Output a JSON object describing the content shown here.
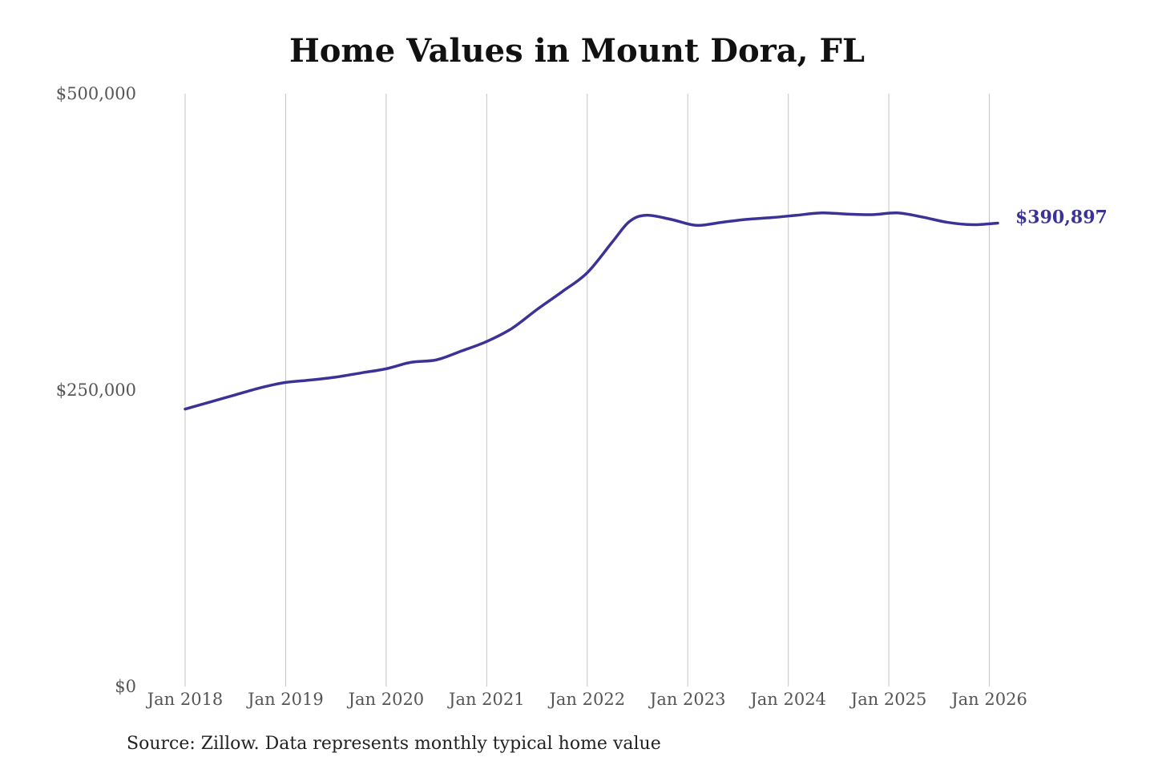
{
  "chart_data": {
    "type": "line",
    "title": "Home Values in Mount Dora, FL",
    "source": "Source: Zillow. Data represents monthly typical home value",
    "xlabel": "",
    "ylabel": "",
    "ylim": [
      0,
      500000
    ],
    "xlim": [
      "2018-01",
      "2026-02"
    ],
    "grid": {
      "vertical": true,
      "horizontal": false
    },
    "y_ticks": [
      {
        "value": 0,
        "label": "$0"
      },
      {
        "value": 250000,
        "label": "$250,000"
      },
      {
        "value": 500000,
        "label": "$500,000"
      }
    ],
    "x_ticks": [
      {
        "value": "2018-01",
        "label": "Jan 2018"
      },
      {
        "value": "2019-01",
        "label": "Jan 2019"
      },
      {
        "value": "2020-01",
        "label": "Jan 2020"
      },
      {
        "value": "2021-01",
        "label": "Jan 2021"
      },
      {
        "value": "2022-01",
        "label": "Jan 2022"
      },
      {
        "value": "2023-01",
        "label": "Jan 2023"
      },
      {
        "value": "2024-01",
        "label": "Jan 2024"
      },
      {
        "value": "2025-01",
        "label": "Jan 2025"
      },
      {
        "value": "2026-01",
        "label": "Jan 2026"
      }
    ],
    "series": [
      {
        "color": "#3a3296",
        "end_label": "$390,897",
        "points": [
          {
            "x": "2018-01",
            "y": 234000
          },
          {
            "x": "2018-04",
            "y": 240000
          },
          {
            "x": "2018-07",
            "y": 246000
          },
          {
            "x": "2018-10",
            "y": 252000
          },
          {
            "x": "2019-01",
            "y": 256500
          },
          {
            "x": "2019-04",
            "y": 258500
          },
          {
            "x": "2019-07",
            "y": 261000
          },
          {
            "x": "2019-10",
            "y": 264500
          },
          {
            "x": "2020-01",
            "y": 268000
          },
          {
            "x": "2020-04",
            "y": 273500
          },
          {
            "x": "2020-07",
            "y": 275500
          },
          {
            "x": "2020-10",
            "y": 283000
          },
          {
            "x": "2021-01",
            "y": 291000
          },
          {
            "x": "2021-04",
            "y": 302000
          },
          {
            "x": "2021-07",
            "y": 318000
          },
          {
            "x": "2021-10",
            "y": 333000
          },
          {
            "x": "2022-01",
            "y": 349000
          },
          {
            "x": "2022-04",
            "y": 375000
          },
          {
            "x": "2022-06",
            "y": 392000
          },
          {
            "x": "2022-08",
            "y": 397500
          },
          {
            "x": "2022-11",
            "y": 394000
          },
          {
            "x": "2023-02",
            "y": 389000
          },
          {
            "x": "2023-05",
            "y": 391500
          },
          {
            "x": "2023-08",
            "y": 394000
          },
          {
            "x": "2023-11",
            "y": 395500
          },
          {
            "x": "2024-02",
            "y": 397500
          },
          {
            "x": "2024-05",
            "y": 399500
          },
          {
            "x": "2024-08",
            "y": 398500
          },
          {
            "x": "2024-11",
            "y": 398000
          },
          {
            "x": "2025-02",
            "y": 399500
          },
          {
            "x": "2025-05",
            "y": 396000
          },
          {
            "x": "2025-08",
            "y": 391500
          },
          {
            "x": "2025-11",
            "y": 389500
          },
          {
            "x": "2026-02",
            "y": 390897
          }
        ]
      }
    ]
  }
}
